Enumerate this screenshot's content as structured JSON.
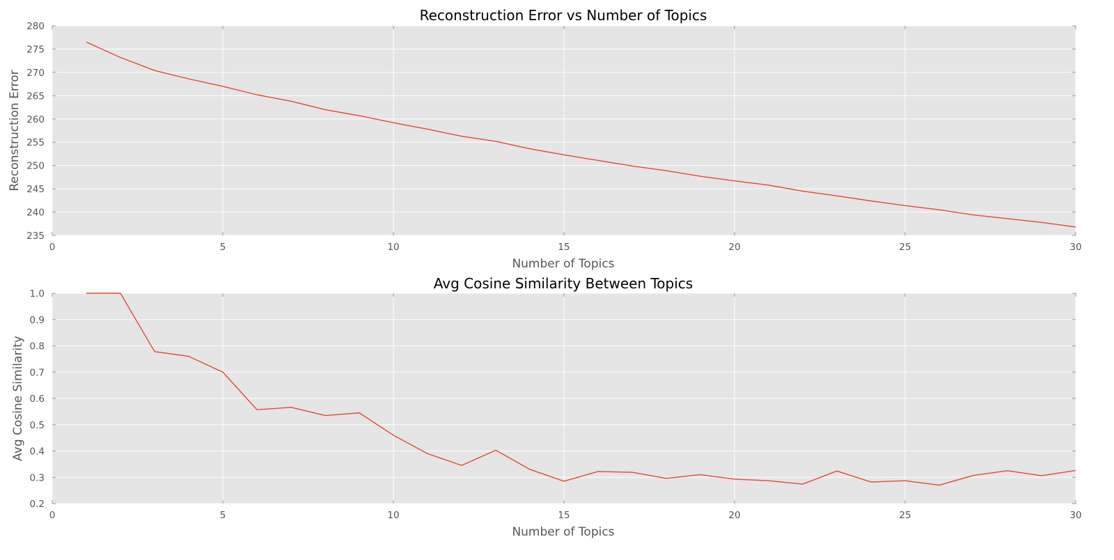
{
  "chart_data": [
    {
      "type": "line",
      "title": "Reconstruction Error vs Number of Topics",
      "xlabel": "Number of Topics",
      "ylabel": "Reconstruction Error",
      "xlim": [
        0,
        30
      ],
      "ylim": [
        235,
        280
      ],
      "xticks": [
        0,
        5,
        10,
        15,
        20,
        25,
        30
      ],
      "yticks": [
        235,
        240,
        245,
        250,
        255,
        260,
        265,
        270,
        275,
        280
      ],
      "grid": true,
      "color": "#e24a33",
      "x": [
        1,
        2,
        3,
        4,
        5,
        6,
        7,
        8,
        9,
        10,
        11,
        12,
        13,
        14,
        15,
        16,
        17,
        18,
        19,
        20,
        21,
        22,
        23,
        24,
        25,
        26,
        27,
        28,
        29,
        30
      ],
      "y": [
        276.5,
        273.2,
        270.4,
        268.6,
        267.0,
        265.2,
        263.8,
        262.0,
        260.7,
        259.2,
        257.8,
        256.3,
        255.2,
        253.6,
        252.3,
        251.1,
        249.9,
        248.9,
        247.7,
        246.7,
        245.8,
        244.5,
        243.5,
        242.4,
        241.4,
        240.5,
        239.4,
        238.6,
        237.8,
        236.8
      ]
    },
    {
      "type": "line",
      "title": "Avg Cosine Similarity Between Topics",
      "xlabel": "Number of Topics",
      "ylabel": "Avg Cosine Similarity",
      "xlim": [
        0,
        30
      ],
      "ylim": [
        0.2,
        1.0
      ],
      "xticks": [
        0,
        5,
        10,
        15,
        20,
        25,
        30
      ],
      "yticks": [
        0.2,
        0.3,
        0.4,
        0.5,
        0.6,
        0.7,
        0.8,
        0.9,
        1.0
      ],
      "grid": true,
      "color": "#e24a33",
      "x": [
        1,
        2,
        3,
        4,
        5,
        6,
        7,
        8,
        9,
        10,
        11,
        12,
        13,
        14,
        15,
        16,
        17,
        18,
        19,
        20,
        21,
        22,
        23,
        24,
        25,
        26,
        27,
        28,
        29,
        30
      ],
      "y": [
        1.0,
        1.0,
        0.778,
        0.76,
        0.7,
        0.557,
        0.566,
        0.535,
        0.545,
        0.46,
        0.39,
        0.345,
        0.403,
        0.33,
        0.285,
        0.322,
        0.319,
        0.296,
        0.31,
        0.293,
        0.287,
        0.274,
        0.324,
        0.282,
        0.287,
        0.27,
        0.307,
        0.325,
        0.306,
        0.326
      ]
    }
  ]
}
